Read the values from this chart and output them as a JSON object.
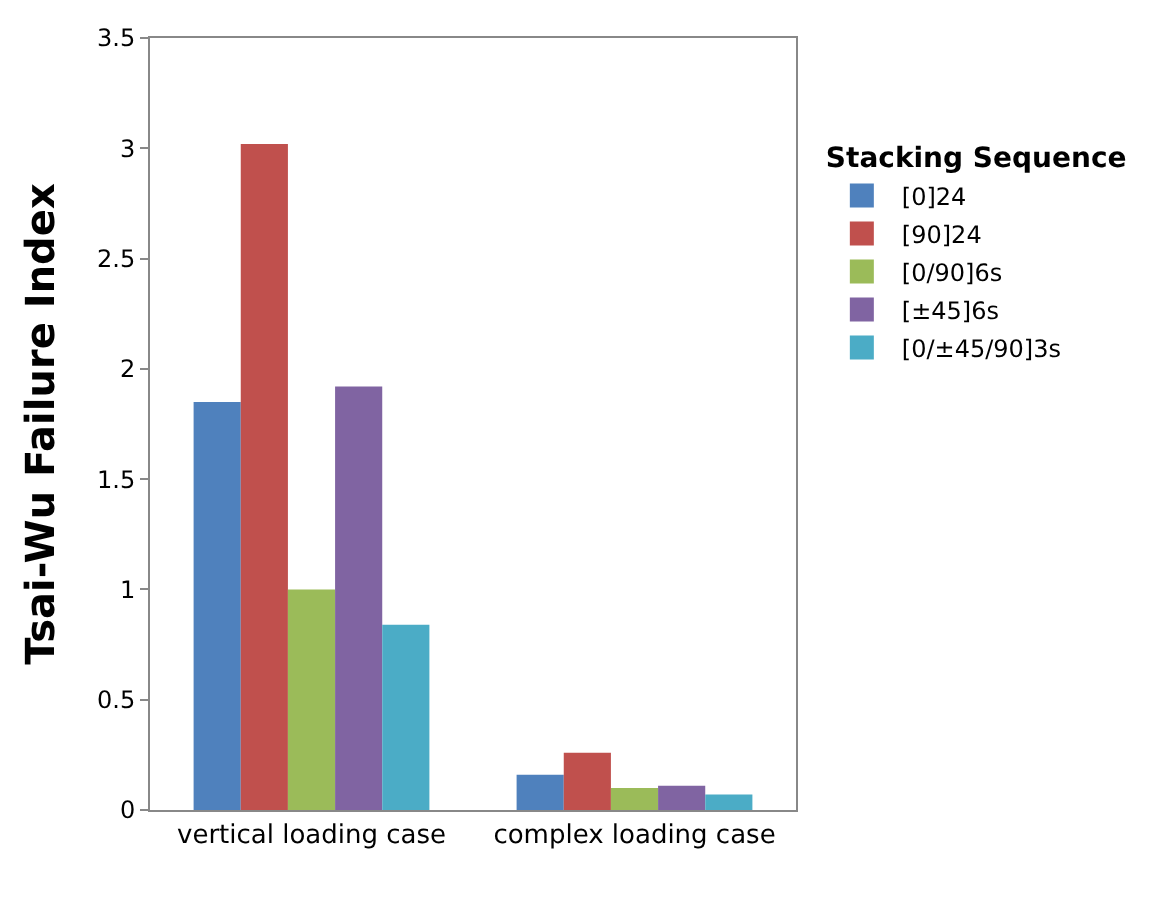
{
  "chart_data": {
    "type": "bar",
    "ylabel": "Tsai-Wu Failure Index",
    "legend_title": "Stacking Sequence",
    "categories": [
      "vertical loading case",
      "complex loading case"
    ],
    "series": [
      {
        "name": "[0]24",
        "color": "#4f81bd",
        "values": [
          1.85,
          0.16
        ]
      },
      {
        "name": "[90]24",
        "color": "#c0504d",
        "values": [
          3.02,
          0.26
        ]
      },
      {
        "name": "[0/90]6s",
        "color": "#9bbb59",
        "values": [
          1.0,
          0.1
        ]
      },
      {
        "name": "[±45]6s",
        "color": "#8064a2",
        "values": [
          1.92,
          0.11
        ]
      },
      {
        "name": "[0/±45/90]3s",
        "color": "#4bacc6",
        "values": [
          0.84,
          0.07
        ]
      }
    ],
    "ylim": [
      0,
      3.5
    ],
    "yticks": [
      0,
      0.5,
      1,
      1.5,
      2,
      2.5,
      3,
      3.5
    ],
    "legend": "right"
  }
}
